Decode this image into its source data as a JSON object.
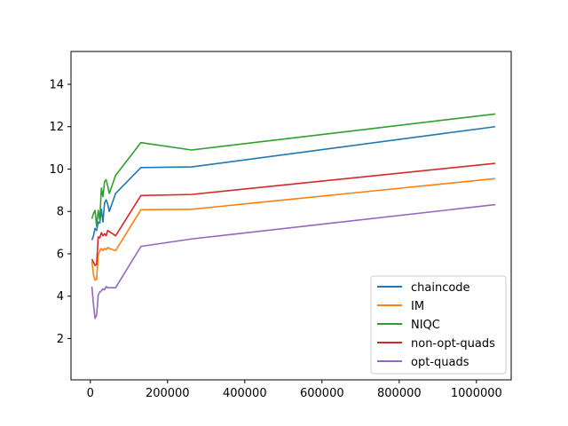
{
  "chart_data": {
    "type": "line",
    "title": "",
    "xlabel": "",
    "ylabel": "",
    "xlim": [
      -50000,
      1090000
    ],
    "ylim": [
      0.05,
      15.55
    ],
    "xticks": [
      0,
      200000,
      400000,
      600000,
      800000,
      1000000
    ],
    "xtick_labels": [
      "0",
      "200000",
      "400000",
      "600000",
      "800000",
      "1000000"
    ],
    "yticks": [
      2,
      4,
      6,
      8,
      10,
      12,
      14
    ],
    "ytick_labels": [
      "2",
      "4",
      "6",
      "8",
      "10",
      "12",
      "14"
    ],
    "grid": false,
    "legend_position": "bottom-right",
    "series": [
      {
        "name": "chaincode",
        "color": "#1f77b4",
        "x": [
          4096,
          8192,
          12288,
          16384,
          20480,
          24576,
          28672,
          32768,
          36864,
          40960,
          45056,
          49152,
          65536,
          131072,
          262144,
          1048576
        ],
        "y": [
          6.65,
          6.85,
          7.2,
          7.1,
          7.5,
          7.45,
          8.1,
          7.5,
          8.4,
          8.55,
          8.35,
          8.0,
          8.85,
          10.07,
          10.1,
          12.0
        ]
      },
      {
        "name": "IM",
        "color": "#ff7f0e",
        "x": [
          4096,
          8192,
          12288,
          16384,
          20480,
          24576,
          28672,
          32768,
          36864,
          40960,
          45056,
          49152,
          65536,
          131072,
          262144,
          1048576
        ],
        "y": [
          5.65,
          5.0,
          4.75,
          4.8,
          5.95,
          6.15,
          6.25,
          6.15,
          6.25,
          6.2,
          6.3,
          6.25,
          6.15,
          8.08,
          8.1,
          9.55
        ]
      },
      {
        "name": "NIQC",
        "color": "#2ca02c",
        "x": [
          4096,
          8192,
          12288,
          16384,
          20480,
          24576,
          28672,
          32768,
          36864,
          40960,
          45056,
          49152,
          65536,
          131072,
          262144,
          1048576
        ],
        "y": [
          7.65,
          7.9,
          8.05,
          7.3,
          8.05,
          7.6,
          9.1,
          8.7,
          9.4,
          9.5,
          9.2,
          8.85,
          9.7,
          11.25,
          10.9,
          12.6
        ]
      },
      {
        "name": "non-opt-quads",
        "color": "#d62728",
        "x": [
          4096,
          8192,
          12288,
          16384,
          20480,
          24576,
          28672,
          32768,
          36864,
          40960,
          45056,
          49152,
          65536,
          131072,
          262144,
          1048576
        ],
        "y": [
          5.75,
          5.6,
          5.45,
          5.5,
          6.8,
          6.75,
          7.0,
          6.85,
          6.95,
          6.85,
          7.1,
          7.05,
          6.85,
          8.75,
          8.8,
          10.27
        ]
      },
      {
        "name": "opt-quads",
        "color": "#9467bd",
        "x": [
          4096,
          8192,
          12288,
          16384,
          20480,
          24576,
          28672,
          32768,
          36864,
          40960,
          45056,
          49152,
          65536,
          131072,
          262144,
          1048576
        ],
        "y": [
          4.45,
          3.6,
          2.95,
          3.1,
          4.05,
          4.2,
          4.25,
          4.35,
          4.3,
          4.45,
          4.4,
          4.4,
          4.4,
          6.35,
          6.7,
          8.32
        ]
      }
    ]
  }
}
